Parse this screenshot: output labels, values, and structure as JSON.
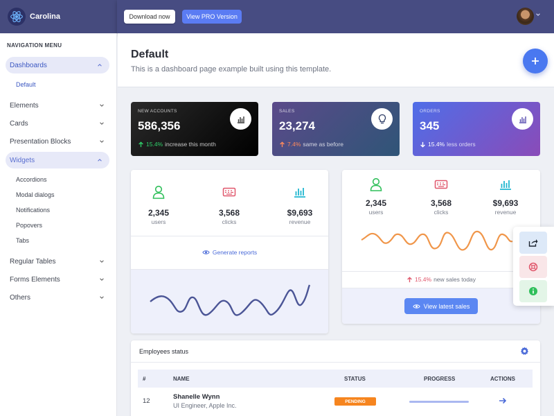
{
  "brand": {
    "name": "Carolina"
  },
  "topbar": {
    "download_label": "Download now",
    "pro_label": "View PRO Version"
  },
  "sidebar": {
    "title": "NAVIGATION MENU",
    "items": [
      {
        "label": "Dashboards"
      },
      {
        "label": "Elements"
      },
      {
        "label": "Cards"
      },
      {
        "label": "Presentation Blocks"
      },
      {
        "label": "Widgets"
      },
      {
        "label": "Regular Tables"
      },
      {
        "label": "Forms Elements"
      },
      {
        "label": "Others"
      }
    ],
    "dash_sub": [
      "Default"
    ],
    "widget_sub": [
      "Accordions",
      "Modal dialogs",
      "Notifications",
      "Popovers",
      "Tabs"
    ]
  },
  "header": {
    "title": "Default",
    "description": "This is a dashboard page example built using this template."
  },
  "stats": [
    {
      "label": "NEW ACCOUNTS",
      "value": "586,356",
      "delta": "15.4%",
      "text": "increase this month",
      "colors": {
        "bg": "#0b0b0b",
        "delta": "#2fcf6a"
      }
    },
    {
      "label": "SALES",
      "value": "23,274",
      "delta": "7.4%",
      "text": "same as before",
      "colors": {
        "bg": "#3a4f7a",
        "delta": "#ff8a5c"
      }
    },
    {
      "label": "ORDERS",
      "value": "345",
      "delta": "15.4%",
      "text": "less orders",
      "colors": {
        "bg": "#6c5fcf",
        "delta": "#ffffff"
      }
    }
  ],
  "metrics_left": {
    "items": [
      {
        "value": "2,345",
        "label": "users"
      },
      {
        "value": "3,568",
        "label": "clicks"
      },
      {
        "value": "$9,693",
        "label": "revenue"
      }
    ],
    "link": "Generate reports"
  },
  "metrics_right": {
    "items": [
      {
        "value": "2,345",
        "label": "users"
      },
      {
        "value": "3,568",
        "label": "clicks"
      },
      {
        "value": "$9,693",
        "label": "revenue"
      }
    ],
    "delta": "15.4%",
    "delta_text": "new sales today",
    "button": "View latest sales"
  },
  "employees": {
    "title": "Employees status",
    "columns": [
      "#",
      "NAME",
      "STATUS",
      "PROGRESS",
      "ACTIONS"
    ],
    "rows": [
      {
        "id": "12",
        "name": "Shanelle Wynn",
        "role": "UI Engineer, Apple Inc.",
        "status": "PENDING",
        "progress": 100
      }
    ]
  },
  "colors": {
    "accent": "#4a78f0",
    "topbar": "#474c82",
    "pending": "#f6851f"
  }
}
